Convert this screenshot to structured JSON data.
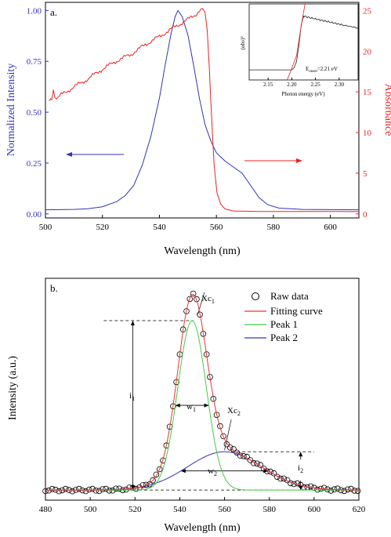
{
  "chart_data": [
    {
      "type": "line",
      "panel_label": "a.",
      "xlabel": "Wavelength (nm)",
      "ylabel_left": "Normalized Intensity",
      "ylabel_right": "Absorbance",
      "xlim": [
        500,
        610
      ],
      "ylim_left": [
        -0.02,
        1.04
      ],
      "ylim_right": [
        -0.5,
        26
      ],
      "x_ticks": [
        500,
        520,
        540,
        560,
        580,
        600
      ],
      "y_ticks_left": [
        "0.00",
        "0.25",
        "0.50",
        "0.75",
        "1.00"
      ],
      "y_ticks_right": [
        "0",
        "5",
        "10",
        "15",
        "20",
        "25"
      ],
      "colors": {
        "emission": "#3333bb",
        "absorbance": "#ee2222"
      },
      "arrows": [
        "left-to-left-axis (blue)",
        "right-to-right-axis (red)"
      ],
      "series": [
        {
          "axis": "left",
          "color": "#3333bb",
          "points": [
            [
              500,
              0.02
            ],
            [
              510,
              0.022
            ],
            [
              515,
              0.025
            ],
            [
              520,
              0.035
            ],
            [
              525,
              0.06
            ],
            [
              528,
              0.09
            ],
            [
              531,
              0.14
            ],
            [
              534,
              0.24
            ],
            [
              537,
              0.38
            ],
            [
              540,
              0.57
            ],
            [
              542,
              0.73
            ],
            [
              544,
              0.88
            ],
            [
              545.5,
              0.97
            ],
            [
              546.5,
              1.0
            ],
            [
              548,
              0.97
            ],
            [
              550,
              0.88
            ],
            [
              552,
              0.73
            ],
            [
              554,
              0.57
            ],
            [
              556,
              0.44
            ],
            [
              558,
              0.36
            ],
            [
              560,
              0.3
            ],
            [
              563,
              0.26
            ],
            [
              566,
              0.23
            ],
            [
              569,
              0.2
            ],
            [
              572,
              0.14
            ],
            [
              575,
              0.08
            ],
            [
              578,
              0.045
            ],
            [
              582,
              0.028
            ],
            [
              590,
              0.022
            ],
            [
              610,
              0.02
            ]
          ]
        },
        {
          "axis": "right",
          "color": "#ee2222",
          "points": [
            [
              501.3,
              13.9
            ],
            [
              502.2,
              14.1
            ],
            [
              502.8,
              15.0
            ],
            [
              503.3,
              14.2
            ],
            [
              505,
              14.5
            ],
            [
              510,
              15.6
            ],
            [
              515,
              16.6
            ],
            [
              520,
              17.8
            ],
            [
              525,
              18.8
            ],
            [
              530,
              19.6
            ],
            [
              535,
              20.8
            ],
            [
              540,
              21.8
            ],
            [
              545,
              22.9
            ],
            [
              550,
              23.9
            ],
            [
              553,
              24.6
            ],
            [
              554,
              25.0
            ],
            [
              555,
              25.1
            ],
            [
              556,
              24.8
            ],
            [
              556.8,
              22.5
            ],
            [
              557.5,
              18.0
            ],
            [
              558.3,
              12.0
            ],
            [
              559.2,
              6.0
            ],
            [
              560.2,
              2.6
            ],
            [
              561.5,
              1.2
            ],
            [
              563,
              0.6
            ],
            [
              566,
              0.35
            ],
            [
              575,
              0.3
            ],
            [
              590,
              0.3
            ],
            [
              610,
              0.28
            ]
          ]
        }
      ],
      "inset": {
        "xlabel": "Photon energy (eV)",
        "ylabel": "(αhν)²",
        "xlim": [
          2.11,
          2.34
        ],
        "x_ticks": [
          "2.15",
          "2.20",
          "2.25",
          "2.30"
        ],
        "annotation_prefix": "E",
        "annotation_sub": "onset",
        "annotation_value": "=2.21 eV",
        "series": [
          {
            "color": "#222222",
            "points": [
              [
                2.11,
                0.1
              ],
              [
                2.15,
                0.1
              ],
              [
                2.2,
                0.1
              ],
              [
                2.205,
                0.13
              ],
              [
                2.21,
                0.22
              ],
              [
                2.215,
                0.45
              ],
              [
                2.22,
                0.75
              ],
              [
                2.225,
                0.87
              ],
              [
                2.23,
                0.86
              ],
              [
                2.25,
                0.83
              ],
              [
                2.27,
                0.8
              ],
              [
                2.29,
                0.77
              ],
              [
                2.31,
                0.74
              ],
              [
                2.34,
                0.7
              ]
            ]
          },
          {
            "color": "#ee2222",
            "points": [
              [
                2.19,
                -0.05
              ],
              [
                2.21,
                0.3
              ],
              [
                2.218,
                0.65
              ],
              [
                2.228,
                1.05
              ]
            ]
          }
        ]
      }
    },
    {
      "type": "line",
      "panel_label": "b.",
      "xlabel": "Wavelength (nm)",
      "ylabel": "Intensity (a.u.)",
      "xlim": [
        480,
        620
      ],
      "ylim": [
        -0.05,
        1.05
      ],
      "x_ticks": [
        480,
        500,
        520,
        540,
        560,
        580,
        600,
        620
      ],
      "colors": {
        "raw": "#000000",
        "fit": "#ee3333",
        "peak1": "#44cc44",
        "peak2": "#3333bb"
      },
      "legend": [
        "Raw data",
        "Fitting curve",
        "Peak 1",
        "Peak 2"
      ],
      "annotations": {
        "xc1": "Xc",
        "xc1_sub": "1",
        "xc2": "Xc",
        "xc2_sub": "2",
        "w1": "w",
        "w1_sub": "1",
        "w2": "w",
        "w2_sub": "2",
        "i1": "i",
        "i1_sub": "1",
        "i2": "i",
        "i2_sub": "2"
      },
      "peak1": {
        "center": 545.5,
        "fwhm": 15,
        "height": 0.84
      },
      "peak2": {
        "center": 560,
        "fwhm": 39,
        "height": 0.19
      },
      "raw_data_x_step": 1.5,
      "raw_data_x_range": [
        480,
        620
      ]
    }
  ]
}
